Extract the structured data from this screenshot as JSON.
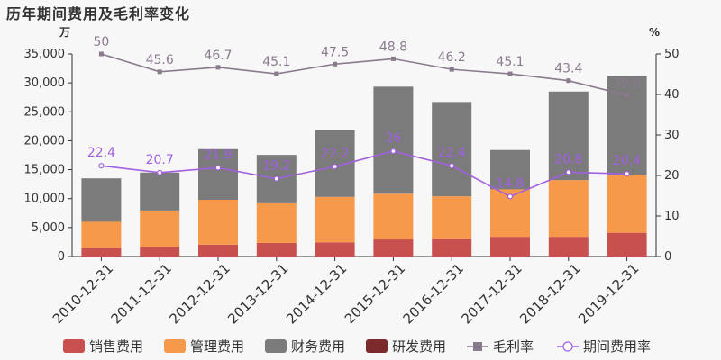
{
  "title": "历年期间费用及毛利率变化",
  "chart_data": {
    "type": "bar",
    "stacked": true,
    "categories": [
      "2010-12-31",
      "2011-12-31",
      "2012-12-31",
      "2013-12-31",
      "2014-12-31",
      "2015-12-31",
      "2016-12-31",
      "2017-12-31",
      "2018-12-31",
      "2019-12-31"
    ],
    "y_left": {
      "unit": "万",
      "lim": [
        0,
        35000
      ],
      "ticks": [
        "0",
        "5,000",
        "10,000",
        "15,000",
        "20,000",
        "25,000",
        "30,000",
        "35,000"
      ]
    },
    "y_right": {
      "unit": "%",
      "lim": [
        0,
        50
      ],
      "ticks": [
        "0",
        "10",
        "20",
        "30",
        "40",
        "50"
      ]
    },
    "bar_series": [
      {
        "name": "销售费用",
        "color": "#c8504e",
        "values": [
          1400,
          1650,
          2050,
          2350,
          2450,
          2950,
          3000,
          3400,
          3400,
          4100
        ]
      },
      {
        "name": "管理费用",
        "color": "#f7994a",
        "values": [
          4600,
          6300,
          7750,
          6850,
          7850,
          7900,
          7400,
          8200,
          9800,
          9900
        ]
      },
      {
        "name": "财务费用",
        "color": "#7b7b7b",
        "values": [
          7500,
          6550,
          8750,
          8350,
          11600,
          18500,
          16300,
          6800,
          15300,
          17200
        ]
      },
      {
        "name": "研发费用",
        "color": "#7b2b2b",
        "values": [
          0,
          0,
          0,
          0,
          0,
          0,
          0,
          0,
          0,
          0
        ]
      }
    ],
    "line_series": [
      {
        "name": "毛利率",
        "color": "#8a7a8e",
        "axis": "right",
        "values": [
          50,
          45.6,
          46.7,
          45.1,
          47.5,
          48.8,
          46.2,
          45.1,
          43.4,
          39.8
        ],
        "labels": [
          "50",
          "45.6",
          "46.7",
          "45.1",
          "47.5",
          "48.8",
          "46.2",
          "45.1",
          "43.4",
          "39.8"
        ]
      },
      {
        "name": "期间费用率",
        "color": "#a060e0",
        "axis": "right",
        "values": [
          22.4,
          20.7,
          21.9,
          19.2,
          22.2,
          26,
          22.4,
          14.8,
          20.8,
          20.4
        ],
        "labels": [
          "22.4",
          "20.7",
          "21.9",
          "19.2",
          "22.2",
          "26",
          "22.4",
          "14.8",
          "20.8",
          "20.4"
        ]
      }
    ],
    "legend": {
      "position": "bottom"
    }
  }
}
